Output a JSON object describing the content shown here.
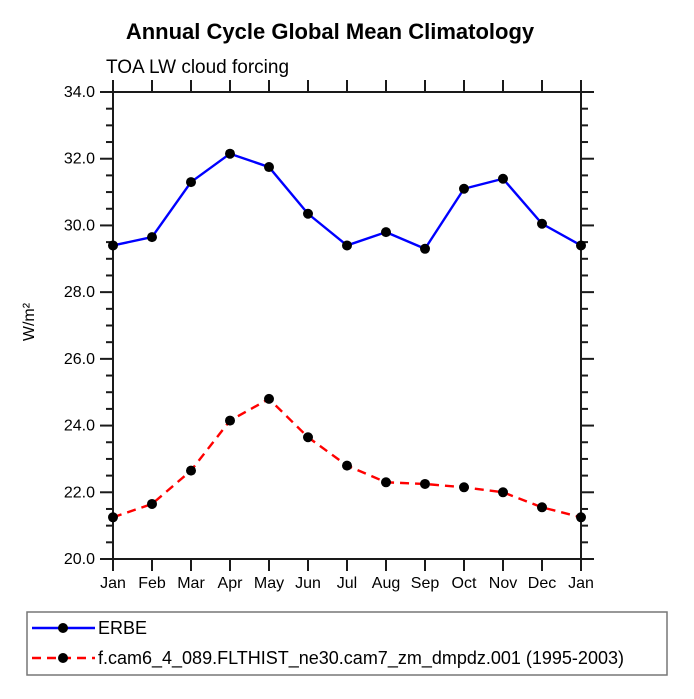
{
  "title": "Annual Cycle Global Mean Climatology",
  "subtitle": "TOA LW cloud forcing",
  "colors": {
    "axis": "#1a1a1a",
    "marker": "#000000",
    "legend_border": "#777777",
    "erbe_line": "#0000ff",
    "model_line": "#ff0000"
  },
  "chart_data": {
    "type": "line",
    "title": "Annual Cycle Global Mean Climatology",
    "subtitle": "TOA LW cloud forcing",
    "xlabel": "",
    "ylabel": "W/m²",
    "x_categories": [
      "Jan",
      "Feb",
      "Mar",
      "Apr",
      "May",
      "Jun",
      "Jul",
      "Aug",
      "Sep",
      "Oct",
      "Nov",
      "Dec",
      "Jan"
    ],
    "ylim": [
      20.0,
      34.0
    ],
    "y_major_ticks": [
      20.0,
      22.0,
      24.0,
      26.0,
      28.0,
      30.0,
      32.0,
      34.0
    ],
    "y_minor_step": 0.5,
    "grid": false,
    "legend_position": "bottom",
    "series": [
      {
        "name": "ERBE",
        "color": "#0000ff",
        "line_style": "solid",
        "marker": "black-dot",
        "values": [
          29.4,
          29.65,
          31.3,
          32.15,
          31.75,
          30.35,
          29.4,
          29.8,
          29.3,
          31.1,
          31.4,
          30.05,
          29.4
        ]
      },
      {
        "name": "f.cam6_4_089.FLTHIST_ne30.cam7_zm_dmpdz.001 (1995-2003)",
        "color": "#ff0000",
        "line_style": "dashed",
        "marker": "black-dot",
        "values": [
          21.25,
          21.65,
          22.65,
          24.15,
          24.8,
          23.65,
          22.8,
          22.3,
          22.25,
          22.15,
          22.0,
          21.55,
          21.25
        ]
      }
    ]
  }
}
